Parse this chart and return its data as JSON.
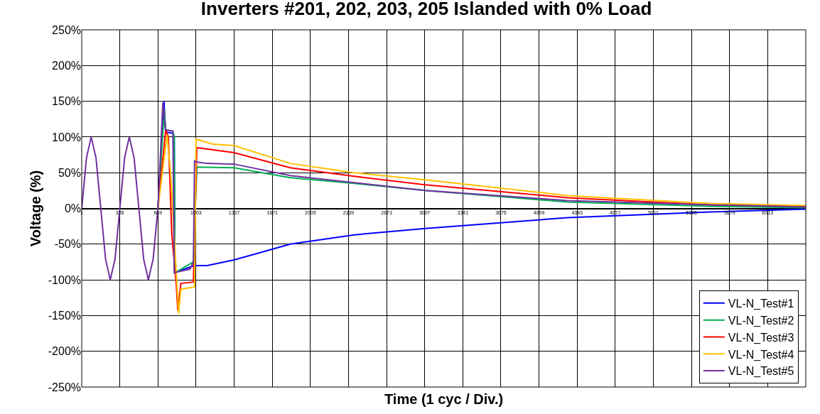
{
  "chart_data": {
    "type": "line",
    "title": "Inverters #201, 202, 203, 205 Islanded with 0% Load",
    "xlabel": "Time (1 cyc / Div.)",
    "ylabel": "Voltage (%)",
    "xlim": [
      1,
      6347
    ],
    "xticks": [
      1,
      335,
      669,
      1003,
      1337,
      1671,
      2005,
      2339,
      2673,
      3007,
      3341,
      3675,
      4009,
      4343,
      4677,
      5011,
      5345,
      5679,
      6013,
      {
        "value": 6347,
        "label": null
      }
    ],
    "ylim": [
      -250,
      250
    ],
    "yticks": [
      {
        "value": 250,
        "label": "250%"
      },
      {
        "value": 200,
        "label": "200%"
      },
      {
        "value": 150,
        "label": "150%"
      },
      {
        "value": 100,
        "label": "100%"
      },
      {
        "value": 50,
        "label": "50%"
      },
      {
        "value": 0,
        "label": "0%"
      },
      {
        "value": -50,
        "label": "-50%"
      },
      {
        "value": -100,
        "label": "-100%"
      },
      {
        "value": -150,
        "label": "-150%"
      },
      {
        "value": -200,
        "label": "-200%"
      },
      {
        "value": -250,
        "label": "-250%"
      }
    ],
    "grid": true,
    "legend": "bottom right",
    "marker": "none",
    "line_style": "solid",
    "series": [
      {
        "name": "VL-N_Test#1",
        "color": "#0000ff",
        "x": [
          669,
          722,
          736,
          800,
          812,
          818,
          986,
          1100,
          1337,
          1829,
          2389,
          3012,
          4260,
          5507,
          6347
        ],
        "values": [
          0,
          150,
          107,
          105,
          100,
          -90,
          -80,
          -80,
          -72,
          -50,
          -37,
          -28,
          -13,
          -5,
          -1
        ]
      },
      {
        "name": "VL-N_Test#2",
        "color": "#00b050",
        "x": [
          669,
          725,
          736,
          800,
          812,
          818,
          980,
          1010,
          1337,
          1829,
          2389,
          3012,
          4260,
          5507,
          6347
        ],
        "values": [
          0,
          138,
          110,
          108,
          100,
          -90,
          -75,
          58,
          57,
          43,
          35,
          25,
          9,
          3,
          1
        ]
      },
      {
        "name": "VL-N_Test#3",
        "color": "#ff0000",
        "x": [
          669,
          737,
          760,
          790,
          830,
          843,
          870,
          980,
          1010,
          1337,
          1829,
          2389,
          3012,
          4260,
          5507,
          6347
        ],
        "values": [
          0,
          110,
          100,
          -35,
          -107,
          -143,
          -105,
          -103,
          85,
          78,
          57,
          45,
          33,
          15,
          5,
          3
        ]
      },
      {
        "name": "VL-N_Test#4",
        "color": "#ffc000",
        "x": [
          669,
          749,
          780,
          850,
          870,
          990,
          1003,
          1150,
          1337,
          1829,
          2389,
          3012,
          4260,
          5507,
          6347
        ],
        "values": [
          0,
          103,
          50,
          -147,
          -113,
          -110,
          97,
          90,
          88,
          63,
          50,
          40,
          18,
          7,
          4
        ]
      },
      {
        "name": "VL-N_Test#5",
        "color": "#7030a0",
        "x": [
          1,
          43,
          84,
          126,
          168,
          210,
          251,
          293,
          335,
          377,
          418,
          460,
          502,
          544,
          585,
          627,
          669,
          712,
          736,
          800,
          812,
          950,
          980,
          990,
          1003,
          1100,
          1337,
          1829,
          2389,
          3012,
          4260,
          5507,
          6347
        ],
        "values": [
          0,
          71,
          100,
          71,
          0,
          -71,
          -100,
          -71,
          0,
          71,
          100,
          71,
          0,
          -71,
          -100,
          -71,
          0,
          148,
          110,
          108,
          -90,
          -85,
          -75,
          67,
          65,
          63,
          62,
          46,
          36,
          25,
          11,
          5,
          2
        ]
      }
    ]
  }
}
